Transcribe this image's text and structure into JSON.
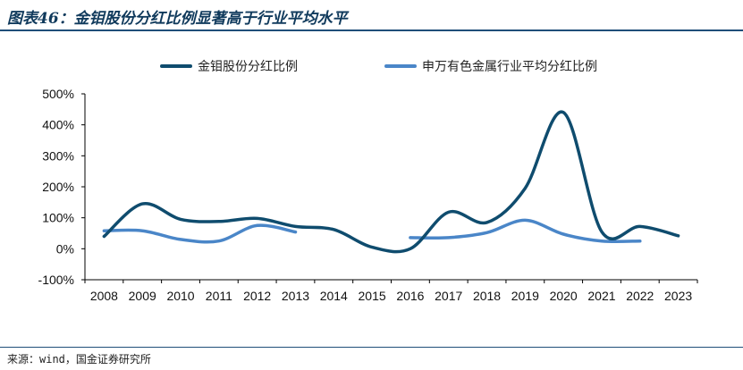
{
  "title": "图表46：金钼股份分红比例显著高于行业平均水平",
  "source": "来源：wind，国金证券研究所",
  "colors": {
    "series_1": "#0f4c6e",
    "series_2": "#4a86c8",
    "title": "#103a5c",
    "rule": "#1f4e79"
  },
  "chart_data": {
    "type": "line",
    "categories": [
      "2008",
      "2009",
      "2010",
      "2011",
      "2012",
      "2013",
      "2014",
      "2015",
      "2016",
      "2017",
      "2018",
      "2019",
      "2020",
      "2021",
      "2022",
      "2023"
    ],
    "yticks": [
      "500%",
      "400%",
      "300%",
      "200%",
      "100%",
      "0%",
      "-100%"
    ],
    "ylim": [
      -100,
      500
    ],
    "y_unit": "%",
    "grid": false,
    "legend_position": "top",
    "smooth": true,
    "series": [
      {
        "name": "金钼股份分红比例",
        "values": [
          40,
          145,
          95,
          88,
          98,
          72,
          62,
          5,
          0,
          118,
          85,
          195,
          440,
          55,
          72,
          42
        ]
      },
      {
        "name": "申万有色金属行业平均分红比例",
        "values": [
          58,
          58,
          30,
          25,
          75,
          54,
          null,
          null,
          36,
          36,
          52,
          92,
          47,
          25,
          25,
          null
        ]
      }
    ]
  }
}
